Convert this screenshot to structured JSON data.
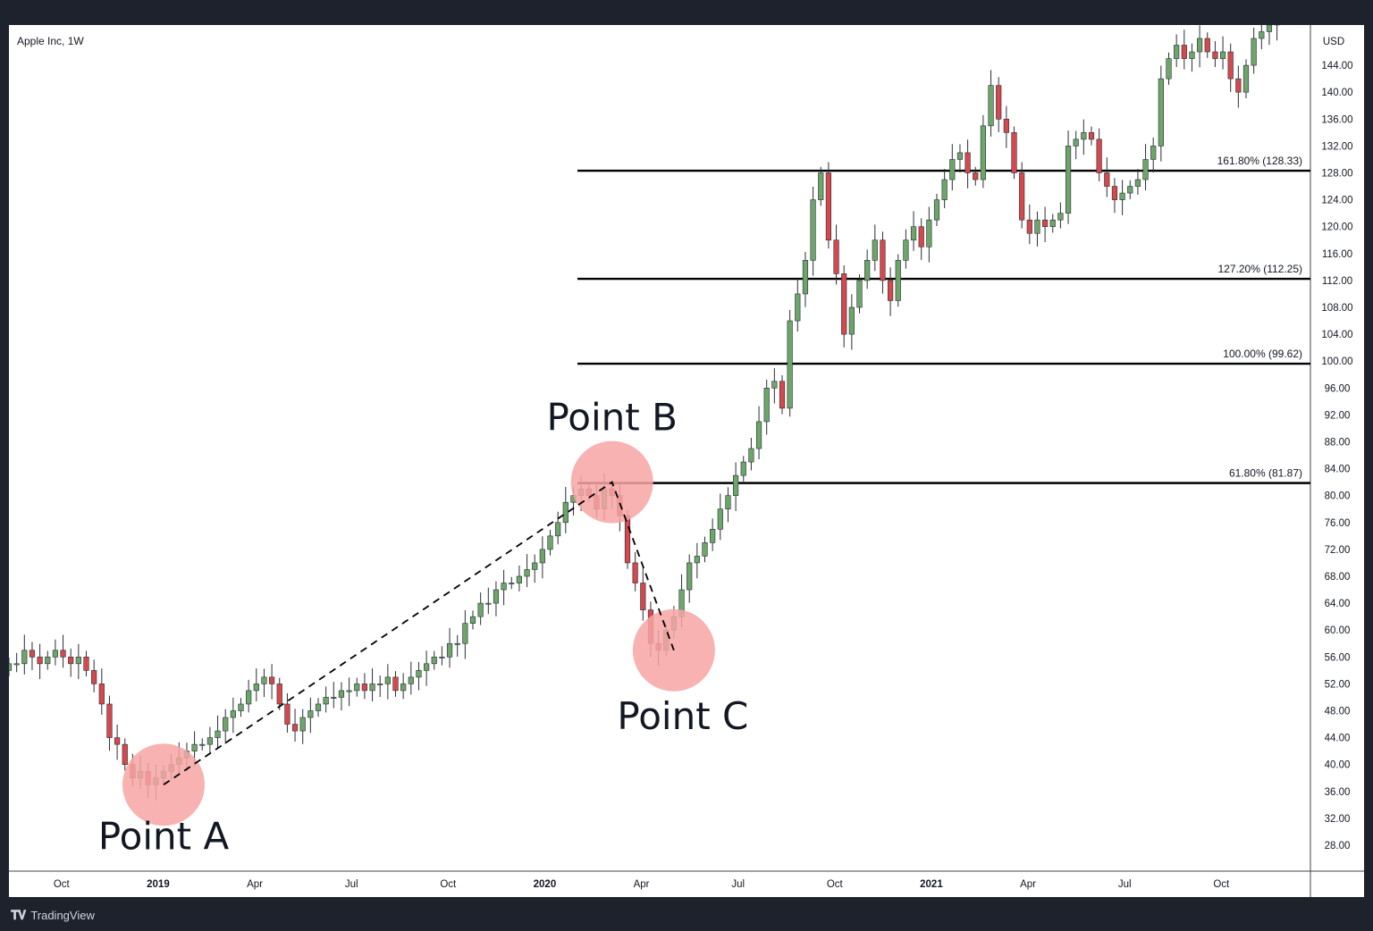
{
  "window": {
    "symbol_label": "Apple Inc, 1W",
    "currency": "USD",
    "footer_brand": "TradingView"
  },
  "colors": {
    "up": "#6ea56a",
    "down": "#d3494d",
    "circle": "#f7a5a5",
    "background": "#1e222d"
  },
  "chart_data": {
    "type": "candlestick",
    "title": "Apple Inc, 1W",
    "ylim": [
      24,
      150
    ],
    "y_ticks": [
      "28.00",
      "32.00",
      "36.00",
      "40.00",
      "44.00",
      "48.00",
      "52.00",
      "56.00",
      "60.00",
      "64.00",
      "68.00",
      "72.00",
      "76.00",
      "80.00",
      "84.00",
      "88.00",
      "92.00",
      "96.00",
      "100.00",
      "104.00",
      "108.00",
      "112.00",
      "116.00",
      "120.00",
      "124.00",
      "128.00",
      "132.00",
      "136.00",
      "140.00",
      "144.00"
    ],
    "x_ticks": [
      {
        "label": "Oct",
        "bold": false
      },
      {
        "label": "2019",
        "bold": true
      },
      {
        "label": "Apr",
        "bold": false
      },
      {
        "label": "Jul",
        "bold": false
      },
      {
        "label": "Oct",
        "bold": false
      },
      {
        "label": "2020",
        "bold": true
      },
      {
        "label": "Apr",
        "bold": false
      },
      {
        "label": "Jul",
        "bold": false
      },
      {
        "label": "Oct",
        "bold": false
      },
      {
        "label": "2021",
        "bold": true
      },
      {
        "label": "Apr",
        "bold": false
      },
      {
        "label": "Jul",
        "bold": false
      },
      {
        "label": "Oct",
        "bold": false
      }
    ],
    "fib_levels": [
      {
        "label": "161.80% (128.33)",
        "value": 128.33
      },
      {
        "label": "127.20% (112.25)",
        "value": 112.25
      },
      {
        "label": "100.00% (99.62)",
        "value": 99.62
      },
      {
        "label": "61.80% (81.87)",
        "value": 81.87
      }
    ],
    "points": [
      {
        "label": "Point A",
        "week": 20,
        "value": 37
      },
      {
        "label": "Point B",
        "week": 78,
        "value": 82
      },
      {
        "label": "Point C",
        "week": 86,
        "value": 57
      }
    ],
    "closes": [
      55,
      55,
      57,
      56,
      55,
      56,
      57,
      56,
      55,
      56,
      54,
      52,
      49,
      44,
      43,
      40,
      38,
      39,
      37,
      38,
      39,
      40,
      41,
      42,
      43,
      43,
      44,
      45,
      47,
      48,
      49,
      51,
      52,
      53,
      52,
      49,
      46,
      45,
      47,
      48,
      49,
      50,
      50,
      51,
      51,
      52,
      51,
      52,
      52,
      53,
      51,
      52,
      53,
      54,
      55,
      56,
      56,
      58,
      58,
      61,
      62,
      64,
      64,
      66,
      67,
      67,
      68,
      69,
      70,
      72,
      74,
      76,
      79,
      80,
      81,
      80,
      78,
      81,
      80,
      77,
      70,
      67,
      63,
      58,
      57,
      60,
      62,
      66,
      70,
      71,
      73,
      75,
      78,
      80,
      83,
      85,
      87,
      91,
      96,
      97,
      93,
      106,
      110,
      115,
      124,
      128,
      118,
      113,
      104,
      108,
      112,
      115,
      118,
      112,
      109,
      115,
      118,
      120,
      117,
      121,
      124,
      127,
      130,
      131,
      128,
      127,
      135,
      141,
      136,
      134,
      128,
      121,
      119,
      121,
      120,
      121,
      122,
      132,
      133,
      134,
      133,
      128,
      126,
      124,
      125,
      126,
      127,
      130,
      132,
      142,
      145,
      147,
      145,
      146,
      148,
      146,
      145,
      146,
      142,
      140,
      144,
      148,
      149,
      150,
      151
    ]
  }
}
